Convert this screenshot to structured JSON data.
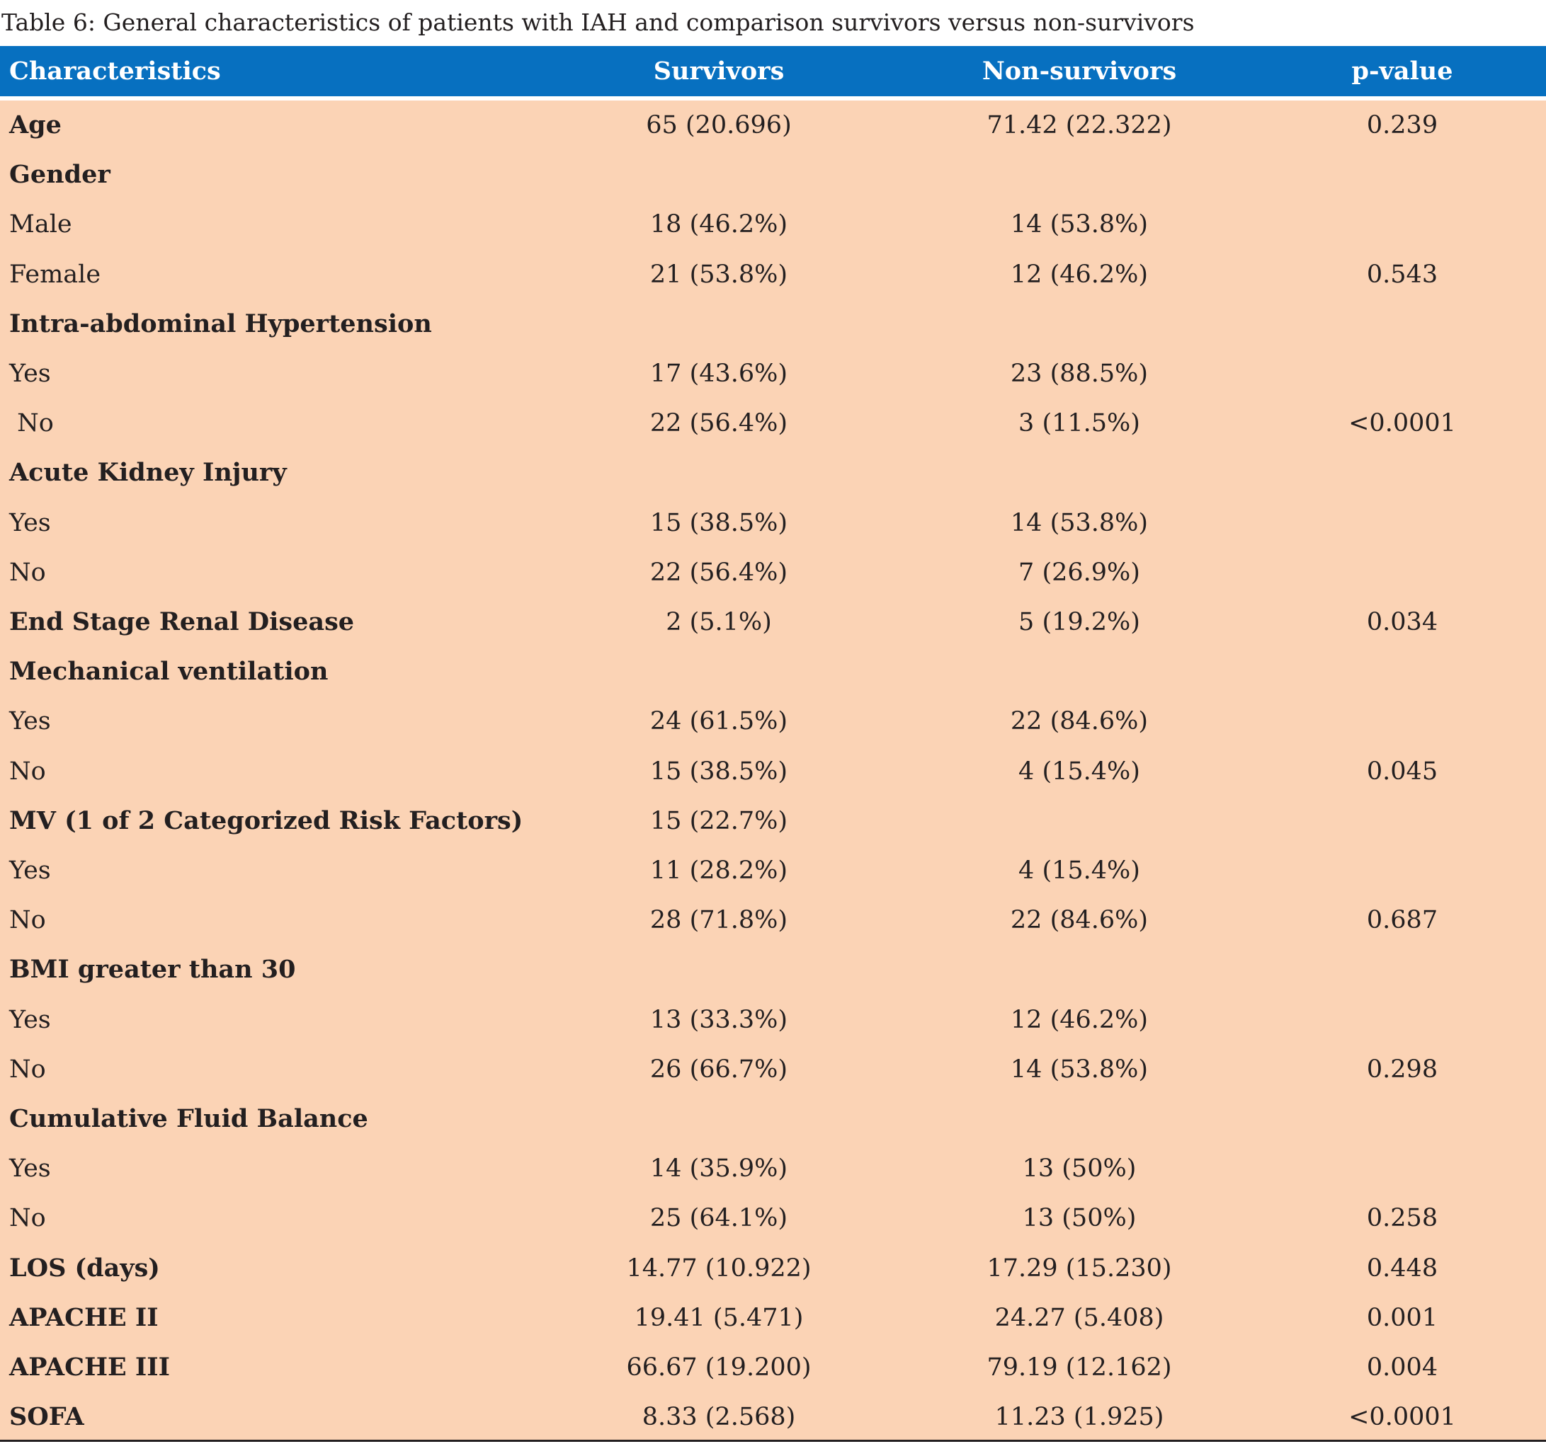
{
  "caption": "Table 6: General characteristics of patients with IAH and comparison survivors versus non-survivors",
  "columns": [
    "Characteristics",
    "Survivors",
    "Non-survivors",
    "p-value"
  ],
  "rows": [
    {
      "label": "Age",
      "bold": true,
      "survivors": "65 (20.696)",
      "non_survivors": "71.42 (22.322)",
      "p_value": "0.239"
    },
    {
      "label": "Gender",
      "bold": true,
      "survivors": "",
      "non_survivors": "",
      "p_value": ""
    },
    {
      "label": "Male",
      "bold": false,
      "survivors": "18 (46.2%)",
      "non_survivors": "14 (53.8%)",
      "p_value": ""
    },
    {
      "label": "Female",
      "bold": false,
      "survivors": "21 (53.8%)",
      "non_survivors": "12 (46.2%)",
      "p_value": "0.543"
    },
    {
      "label": "Intra-abdominal Hypertension",
      "bold": true,
      "survivors": "",
      "non_survivors": "",
      "p_value": ""
    },
    {
      "label": "Yes",
      "bold": false,
      "survivors": "17 (43.6%)",
      "non_survivors": "23 (88.5%)",
      "p_value": ""
    },
    {
      "label": " No",
      "bold": false,
      "survivors": "22 (56.4%)",
      "non_survivors": "3 (11.5%)",
      "p_value": "<0.0001"
    },
    {
      "label": "Acute Kidney Injury",
      "bold": true,
      "survivors": "",
      "non_survivors": "",
      "p_value": ""
    },
    {
      "label": "Yes",
      "bold": false,
      "survivors": "15 (38.5%)",
      "non_survivors": "14 (53.8%)",
      "p_value": ""
    },
    {
      "label": "No",
      "bold": false,
      "survivors": "22 (56.4%)",
      "non_survivors": "7 (26.9%)",
      "p_value": ""
    },
    {
      "label": "End Stage Renal Disease",
      "bold": true,
      "survivors": "2 (5.1%)",
      "non_survivors": "5 (19.2%)",
      "p_value": "0.034"
    },
    {
      "label": "Mechanical ventilation",
      "bold": true,
      "survivors": "",
      "non_survivors": "",
      "p_value": ""
    },
    {
      "label": "Yes",
      "bold": false,
      "survivors": "24 (61.5%)",
      "non_survivors": "22 (84.6%)",
      "p_value": ""
    },
    {
      "label": "No",
      "bold": false,
      "survivors": "15 (38.5%)",
      "non_survivors": "4 (15.4%)",
      "p_value": "0.045"
    },
    {
      "label": "MV (1 of 2 Categorized Risk Factors)",
      "bold": true,
      "survivors": "15 (22.7%)",
      "non_survivors": "",
      "p_value": ""
    },
    {
      "label": "Yes",
      "bold": false,
      "survivors": "11 (28.2%)",
      "non_survivors": "4 (15.4%)",
      "p_value": ""
    },
    {
      "label": "No",
      "bold": false,
      "survivors": "28 (71.8%)",
      "non_survivors": "22 (84.6%)",
      "p_value": "0.687"
    },
    {
      "label": "BMI greater than 30",
      "bold": true,
      "survivors": "",
      "non_survivors": "",
      "p_value": ""
    },
    {
      "label": "Yes",
      "bold": false,
      "survivors": "13 (33.3%)",
      "non_survivors": "12 (46.2%)",
      "p_value": ""
    },
    {
      "label": "No",
      "bold": false,
      "survivors": "26 (66.7%)",
      "non_survivors": "14 (53.8%)",
      "p_value": "0.298"
    },
    {
      "label": "Cumulative Fluid Balance",
      "bold": true,
      "survivors": "",
      "non_survivors": "",
      "p_value": ""
    },
    {
      "label": "Yes",
      "bold": false,
      "survivors": "14 (35.9%)",
      "non_survivors": "13 (50%)",
      "p_value": ""
    },
    {
      "label": "No",
      "bold": false,
      "survivors": "25 (64.1%)",
      "non_survivors": "13 (50%)",
      "p_value": "0.258"
    },
    {
      "label": "LOS (days)",
      "bold": true,
      "survivors": "14.77 (10.922)",
      "non_survivors": "17.29 (15.230)",
      "p_value": "0.448"
    },
    {
      "label": "APACHE II",
      "bold": true,
      "survivors": "19.41 (5.471)",
      "non_survivors": "24.27 (5.408)",
      "p_value": "0.001"
    },
    {
      "label": "APACHE III",
      "bold": true,
      "survivors": "66.67 (19.200)",
      "non_survivors": "79.19 (12.162)",
      "p_value": "0.004"
    },
    {
      "label": "SOFA",
      "bold": true,
      "survivors": "8.33 (2.568)",
      "non_survivors": "11.23 (1.925)",
      "p_value": "<0.0001"
    }
  ],
  "colors": {
    "header_bg": "#0770c0",
    "header_text": "#ffffff",
    "body_bg": "#fbd3b5",
    "text": "#231f20"
  }
}
